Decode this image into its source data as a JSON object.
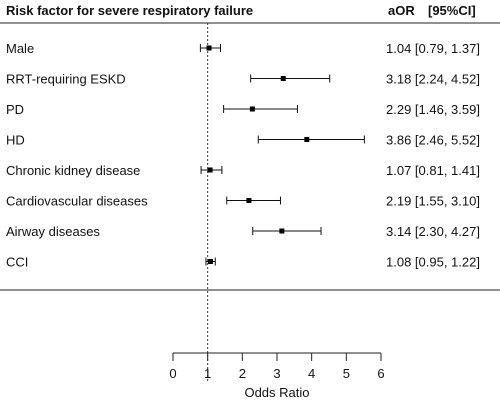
{
  "chart_data": {
    "type": "forest",
    "header_left": "Risk factor for severe respiratory failure",
    "header_right_a": "aOR",
    "header_right_b": "[95%CI]",
    "xlabel": "Odds Ratio",
    "xlim": [
      0,
      6
    ],
    "xticks": [
      "0",
      "1",
      "2",
      "3",
      "4",
      "5",
      "6"
    ],
    "reference_line": 1,
    "rows": [
      {
        "label": "Male",
        "or": 1.04,
        "lo": 0.79,
        "hi": 1.37,
        "text": "1.04 [0.79, 1.37]"
      },
      {
        "label": "RRT-requiring ESKD",
        "or": 3.18,
        "lo": 2.24,
        "hi": 4.52,
        "text": "3.18 [2.24, 4.52]"
      },
      {
        "label": "PD",
        "or": 2.29,
        "lo": 1.46,
        "hi": 3.59,
        "text": "2.29 [1.46, 3.59]"
      },
      {
        "label": "HD",
        "or": 3.86,
        "lo": 2.46,
        "hi": 5.52,
        "text": "3.86 [2.46, 5.52]"
      },
      {
        "label": "Chronic kidney disease",
        "or": 1.07,
        "lo": 0.81,
        "hi": 1.41,
        "text": "1.07 [0.81, 1.41]"
      },
      {
        "label": "Cardiovascular diseases",
        "or": 2.19,
        "lo": 1.55,
        "hi": 3.1,
        "text": "2.19 [1.55, 3.10]"
      },
      {
        "label": "Airway diseases",
        "or": 3.14,
        "lo": 2.3,
        "hi": 4.27,
        "text": "3.14 [2.30, 4.27]"
      },
      {
        "label": "CCI",
        "or": 1.08,
        "lo": 0.95,
        "hi": 1.22,
        "text": "1.08 [0.95, 1.22]"
      }
    ]
  }
}
